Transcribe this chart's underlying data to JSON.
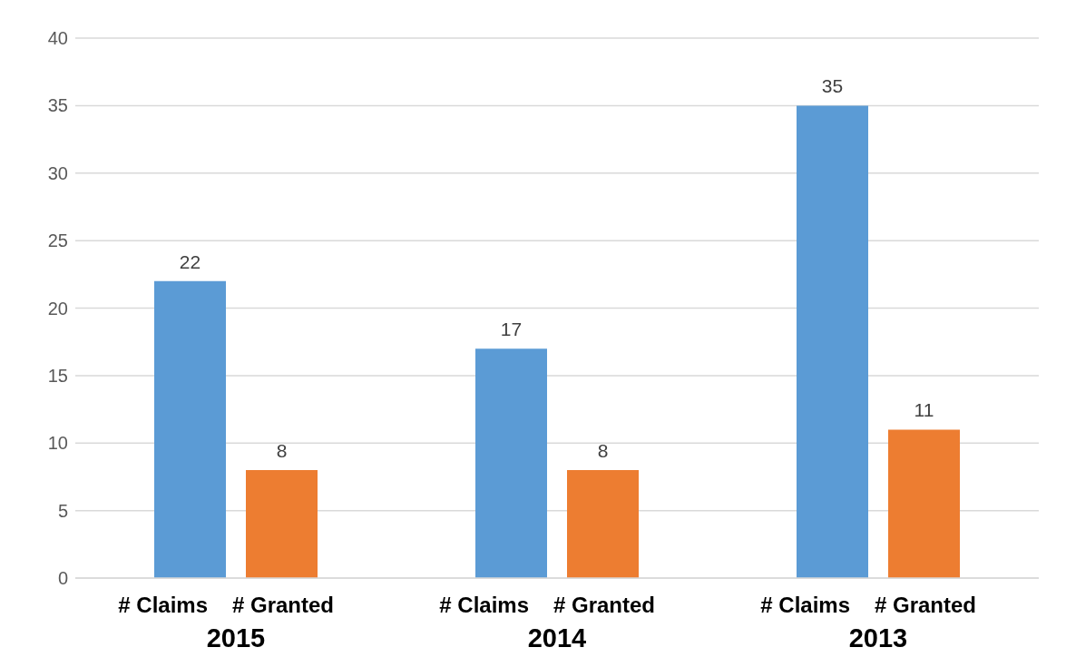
{
  "chart_data": {
    "type": "bar",
    "categories": [
      "2015",
      "2014",
      "2013"
    ],
    "series": [
      {
        "name": "# Claims",
        "color": "#5b9bd5",
        "values": [
          22,
          17,
          35
        ]
      },
      {
        "name": "# Granted",
        "color": "#ed7d31",
        "values": [
          8,
          8,
          11
        ]
      }
    ],
    "ylim": [
      0,
      40
    ],
    "yticks": [
      0,
      5,
      10,
      15,
      20,
      25,
      30,
      35,
      40
    ],
    "grid": "y",
    "data_labels": true,
    "legend": false
  }
}
